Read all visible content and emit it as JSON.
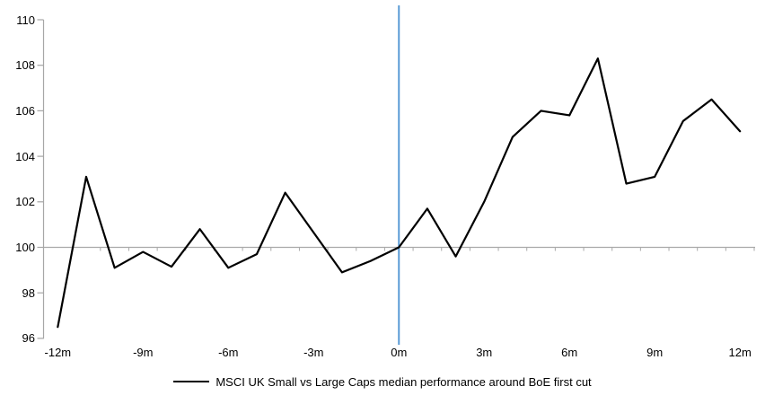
{
  "page": {
    "background_color": "#ffffff"
  },
  "chart_data": {
    "type": "line",
    "title": "",
    "legend_label": "MSCI UK Small vs Large Caps median performance around BoE first cut",
    "legend_position": "bottom",
    "grid": "off",
    "categories_months": [
      -12,
      -11,
      -10,
      -9,
      -8,
      -7,
      -6,
      -5,
      -4,
      -3,
      -2,
      -1,
      0,
      1,
      2,
      3,
      4,
      5,
      6,
      7,
      8,
      9,
      10,
      11,
      12
    ],
    "series": [
      {
        "name": "MSCI UK Small vs Large Caps median performance around BoE first cut",
        "color": "#000000",
        "values": [
          96.5,
          103.1,
          99.1,
          99.8,
          99.15,
          100.8,
          99.1,
          99.7,
          102.4,
          100.65,
          98.9,
          99.4,
          100.0,
          101.7,
          99.6,
          102.0,
          104.85,
          106.0,
          105.8,
          108.3,
          102.8,
          103.1,
          105.55,
          106.5,
          105.1
        ]
      }
    ],
    "x_axis": {
      "tick_months": [
        -12,
        -9,
        -6,
        -3,
        0,
        3,
        6,
        9,
        12
      ],
      "tick_labels": [
        "-12m",
        "-9m",
        "-6m",
        "-3m",
        "0m",
        "3m",
        "6m",
        "9m",
        "12m"
      ],
      "minor_tick_every_month": true
    },
    "y_axis": {
      "min": 96,
      "max": 110,
      "step": 2,
      "tick_values": [
        96,
        98,
        100,
        102,
        104,
        106,
        108,
        110
      ],
      "tick_labels": [
        "96",
        "98",
        "100",
        "102",
        "104",
        "106",
        "108",
        "110"
      ]
    },
    "baseline": {
      "value": 100,
      "color": "#a9a9a9"
    },
    "event_line": {
      "month": 0,
      "color": "#5b9bd5"
    },
    "axis_color": "#a6a6a6"
  }
}
